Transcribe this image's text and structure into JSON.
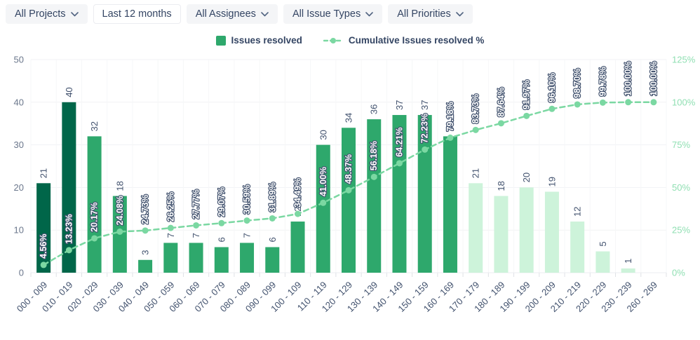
{
  "filters": [
    {
      "id": "projects",
      "label": "All Projects",
      "chevron": true,
      "variant": "gray"
    },
    {
      "id": "time-range",
      "label": "Last 12 months",
      "chevron": false,
      "variant": "white"
    },
    {
      "id": "assignees",
      "label": "All Assignees",
      "chevron": true,
      "variant": "gray"
    },
    {
      "id": "issue-types",
      "label": "All Issue Types",
      "chevron": true,
      "variant": "gray"
    },
    {
      "id": "priorities",
      "label": "All Priorities",
      "chevron": true,
      "variant": "gray"
    }
  ],
  "legend": {
    "bar_label": "Issues resolved",
    "line_label": "Cumulative Issues resolved %"
  },
  "colors": {
    "bar_dark": "#006649",
    "bar_medium": "#2ea86c",
    "bar_light": "#cdf3da",
    "line": "#7bd8a2",
    "grid": "#f1f2f4",
    "grid_vertical": "#f6f7f8",
    "axis_line": "#ebedf0",
    "tick": "#dfe1e6"
  },
  "chart_data": {
    "type": "bar",
    "subtype": "pareto (bars + cumulative % line)",
    "categories": [
      "000 - 009",
      "010 - 019",
      "020 - 029",
      "030 - 039",
      "040 - 049",
      "050 - 059",
      "060 - 069",
      "070 - 079",
      "080 - 089",
      "090 - 099",
      "100 - 109",
      "110 - 119",
      "120 - 129",
      "130 - 139",
      "140 - 149",
      "150 - 159",
      "160 - 169",
      "170 - 179",
      "180 - 189",
      "190 - 199",
      "200 - 209",
      "210 - 219",
      "220 - 229",
      "230 - 239",
      "260 - 269"
    ],
    "series": [
      {
        "name": "Issues resolved",
        "type": "bar",
        "axis": "left",
        "values": [
          21,
          40,
          32,
          18,
          3,
          7,
          7,
          6,
          7,
          6,
          12,
          30,
          34,
          36,
          37,
          37,
          32,
          21,
          18,
          20,
          19,
          12,
          5,
          1,
          0
        ]
      },
      {
        "name": "Cumulative Issues resolved %",
        "type": "line",
        "axis": "right",
        "dashed": true,
        "values": [
          4.56,
          13.23,
          20.17,
          24.08,
          24.73,
          26.25,
          27.77,
          29.07,
          30.59,
          31.89,
          34.49,
          41.0,
          48.37,
          56.18,
          64.21,
          72.23,
          79.18,
          83.73,
          87.64,
          91.97,
          96.1,
          98.7,
          99.78,
          100.0,
          100.0
        ]
      }
    ],
    "pct_labels": [
      "4.56%",
      "13.23%",
      "20.17%",
      "24.08%",
      "24.73%",
      "26.25%",
      "27.77%",
      "29.07%",
      "30.59%",
      "31.89%",
      "34.49%",
      "41.00%",
      "48.37%",
      "56.18%",
      "64.21%",
      "72.23%",
      "79.18%",
      "83.73%",
      "87.64%",
      "91.97%",
      "96.10%",
      "98.70%",
      "99.78%",
      "100.00%",
      "100.00%"
    ],
    "bar_palette": [
      "dark",
      "dark",
      "medium",
      "medium",
      "medium",
      "medium",
      "medium",
      "medium",
      "medium",
      "medium",
      "medium",
      "medium",
      "medium",
      "medium",
      "medium",
      "medium",
      "medium",
      "light",
      "light",
      "light",
      "light",
      "light",
      "light",
      "light",
      "none"
    ],
    "left_axis": {
      "ticks": [
        "0",
        "10",
        "20",
        "30",
        "40",
        "50"
      ],
      "tick_values": [
        0,
        10,
        20,
        30,
        40,
        50
      ],
      "max": 50
    },
    "right_axis": {
      "ticks": [
        "0%",
        "25%",
        "50%",
        "75%",
        "100%",
        "125%"
      ],
      "tick_values": [
        0,
        25,
        50,
        75,
        100,
        125
      ],
      "max": 125
    },
    "grid": true,
    "legend_position": "top-center",
    "value_labels_rotation": -90,
    "x_labels_rotation": -45
  }
}
